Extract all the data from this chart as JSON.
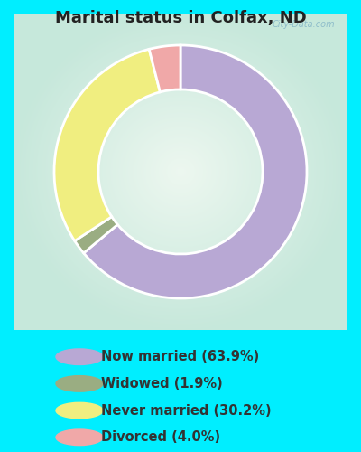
{
  "title": "Marital status in Colfax, ND",
  "title_fontsize": 13,
  "title_color": "#222222",
  "background_color": "#00eeff",
  "chart_bg_color": "#dff0e8",
  "legend_bg_color": "#00eeff",
  "slices": [
    {
      "label": "Now married (63.9%)",
      "value": 63.9,
      "color": "#b8a8d4"
    },
    {
      "label": "Widowed (1.9%)",
      "value": 1.9,
      "color": "#9aad82"
    },
    {
      "label": "Never married (30.2%)",
      "value": 30.2,
      "color": "#f0ee80"
    },
    {
      "label": "Divorced (4.0%)",
      "value": 4.0,
      "color": "#f0a8a8"
    }
  ],
  "donut_width": 0.35,
  "start_angle": 90,
  "legend_fontsize": 10.5,
  "watermark": "City-Data.com"
}
